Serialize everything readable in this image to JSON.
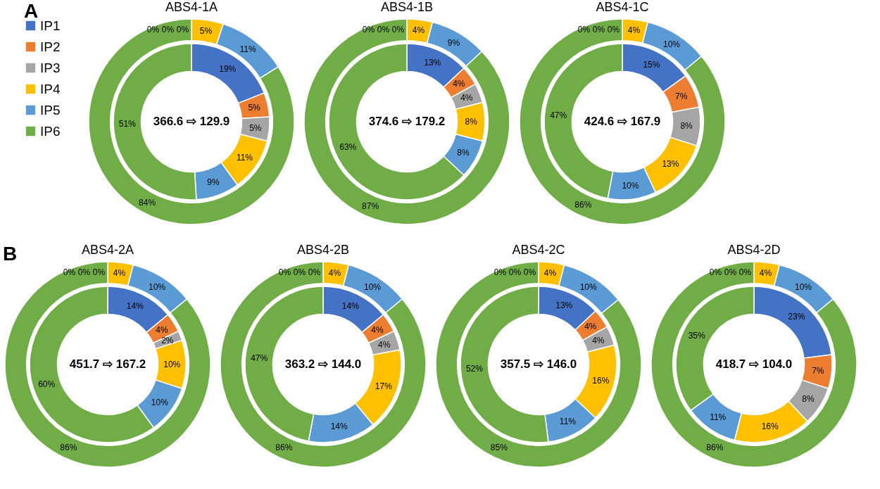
{
  "chart_data": [
    {
      "type": "donut",
      "title": "ABS4-1A",
      "categories": [
        "IP1",
        "IP2",
        "IP3",
        "IP4",
        "IP5",
        "IP6"
      ],
      "colors": [
        "#4472c4",
        "#ed7d31",
        "#a5a5a5",
        "#ffc000",
        "#5b9bd5",
        "#70ad47"
      ],
      "legend": "left",
      "annotations": [
        "A",
        "366.6 ⇨ 129.9"
      ],
      "series": [
        {
          "values": [
            19,
            5,
            5,
            11,
            9,
            51
          ],
          "value_labels": [
            "19%",
            "5%",
            "5%",
            "11%",
            "9%",
            "51%"
          ]
        },
        {
          "values": [
            0,
            0,
            0,
            5,
            11,
            84
          ],
          "value_labels": [
            "0%",
            "0%",
            "0%",
            "5%",
            "11%",
            "84%"
          ]
        }
      ]
    },
    {
      "type": "donut",
      "title": "ABS4-1B",
      "categories": [
        null,
        null,
        null,
        null,
        null,
        null
      ],
      "colors": [
        "#4472c4",
        "#ed7d31",
        "#a5a5a5",
        "#ffc000",
        "#5b9bd5",
        "#70ad47"
      ],
      "annotations": [
        "374.6 ⇨ 179.2"
      ],
      "series": [
        {
          "values": [
            13,
            4,
            4,
            8,
            8,
            63
          ],
          "value_labels": [
            "13%",
            "4%",
            "4%",
            "8%",
            "8%",
            "63%"
          ]
        },
        {
          "values": [
            0,
            0,
            0,
            4,
            9,
            87
          ],
          "value_labels": [
            "0%",
            "0%",
            "0%",
            "4%",
            "9%",
            "87%"
          ]
        }
      ]
    },
    {
      "type": "donut",
      "title": "ABS4-1C",
      "categories": [
        null,
        null,
        null,
        null,
        null,
        null
      ],
      "colors": [
        "#4472c4",
        "#ed7d31",
        "#a5a5a5",
        "#ffc000",
        "#5b9bd5",
        "#70ad47"
      ],
      "annotations": [
        "424.6 ⇨ 167.9"
      ],
      "series": [
        {
          "values": [
            15,
            7,
            8,
            13,
            10,
            47
          ],
          "value_labels": [
            "15%",
            "7%",
            "8%",
            "13%",
            "10%",
            "47%"
          ]
        },
        {
          "values": [
            0,
            0,
            0,
            4,
            10,
            86
          ],
          "value_labels": [
            "0%",
            "0%",
            "0%",
            "4%",
            "10%",
            "86%"
          ]
        }
      ]
    },
    {
      "type": "donut",
      "title": "ABS4-2A",
      "categories": [
        null,
        null,
        null,
        null,
        null,
        null
      ],
      "colors": [
        "#4472c4",
        "#ed7d31",
        "#a5a5a5",
        "#ffc000",
        "#5b9bd5",
        "#70ad47"
      ],
      "annotations": [
        "B",
        "451.7 ⇨ 167.2"
      ],
      "series": [
        {
          "values": [
            14,
            4,
            2,
            10,
            10,
            60
          ],
          "value_labels": [
            "14%",
            "4%",
            "2%",
            "10%",
            "10%",
            "60%"
          ]
        },
        {
          "values": [
            0,
            0,
            0,
            4,
            10,
            86
          ],
          "value_labels": [
            "0%",
            "0%",
            "0%",
            "4%",
            "10%",
            "86%"
          ]
        }
      ]
    },
    {
      "type": "donut",
      "title": "ABS4-2B",
      "categories": [
        null,
        null,
        null,
        null,
        null,
        null
      ],
      "colors": [
        "#4472c4",
        "#ed7d31",
        "#a5a5a5",
        "#ffc000",
        "#5b9bd5",
        "#70ad47"
      ],
      "annotations": [
        "363.2 ⇨ 144.0"
      ],
      "series": [
        {
          "values": [
            14,
            4,
            4,
            17,
            14,
            47
          ],
          "value_labels": [
            "14%",
            "4%",
            "4%",
            "17%",
            "14%",
            "47%"
          ]
        },
        {
          "values": [
            0,
            0,
            0,
            4,
            10,
            86
          ],
          "value_labels": [
            "0%",
            "0%",
            "0%",
            "4%",
            "10%",
            "86%"
          ]
        }
      ]
    },
    {
      "type": "donut",
      "title": "ABS4-2C",
      "categories": [
        null,
        null,
        null,
        null,
        null,
        null
      ],
      "colors": [
        "#4472c4",
        "#ed7d31",
        "#a5a5a5",
        "#ffc000",
        "#5b9bd5",
        "#70ad47"
      ],
      "annotations": [
        "357.5 ⇨ 146.0"
      ],
      "series": [
        {
          "values": [
            13,
            4,
            4,
            16,
            11,
            52
          ],
          "value_labels": [
            "13%",
            "4%",
            "4%",
            "16%",
            "11%",
            "52%"
          ]
        },
        {
          "values": [
            0,
            0,
            0,
            4,
            10,
            85
          ],
          "value_labels": [
            "0%",
            "0%",
            "0%",
            "4%",
            "10%",
            "85%"
          ]
        }
      ]
    },
    {
      "type": "donut",
      "title": "ABS4-2D",
      "categories": [
        null,
        null,
        null,
        null,
        null,
        null
      ],
      "colors": [
        "#4472c4",
        "#ed7d31",
        "#a5a5a5",
        "#ffc000",
        "#5b9bd5",
        "#70ad47"
      ],
      "annotations": [
        "418.7 ⇨ 104.0"
      ],
      "series": [
        {
          "values": [
            23,
            7,
            8,
            16,
            11,
            35
          ],
          "value_labels": [
            "23%",
            "7%",
            "8%",
            "16%",
            "11%",
            "35%"
          ]
        },
        {
          "values": [
            0,
            0,
            0,
            4,
            10,
            86
          ],
          "value_labels": [
            "0%",
            "0%",
            "0%",
            "4%",
            "10%",
            "86%"
          ]
        }
      ]
    }
  ]
}
